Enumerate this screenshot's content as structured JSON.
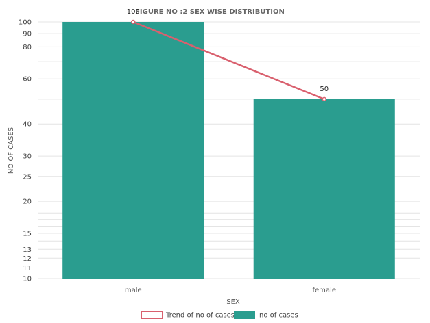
{
  "chart_data": {
    "type": "bar",
    "title": "FIGURE NO :2 SEX WISE DISTRIBUTION",
    "xlabel": "SEX",
    "ylabel": "NO OF CASES",
    "categories": [
      "male",
      "female"
    ],
    "series": [
      {
        "name": "no of cases",
        "type": "bar",
        "values": [
          100,
          50
        ],
        "color": "#2a9d8f"
      },
      {
        "name": "Trend of no of cases",
        "type": "line",
        "values": [
          100,
          50
        ],
        "color": "#d9606e"
      }
    ],
    "data_labels": [
      "100",
      "50"
    ],
    "y_scale": "log",
    "ylim": [
      10,
      100
    ],
    "y_ticks": [
      10,
      11,
      12,
      13,
      15,
      20,
      25,
      30,
      40,
      60,
      80,
      90,
      100
    ],
    "y_tick_labels": [
      "10",
      "11",
      "12",
      "13",
      "15",
      "20",
      "25",
      "30",
      "40",
      "60",
      "80",
      "90",
      "100"
    ],
    "y_gridlines": [
      10,
      11,
      12,
      13,
      14,
      15,
      16,
      17,
      18,
      19,
      20,
      25,
      30,
      40,
      50,
      60,
      70,
      80,
      90,
      100
    ],
    "grid": true,
    "legend_position": "bottom-center"
  }
}
